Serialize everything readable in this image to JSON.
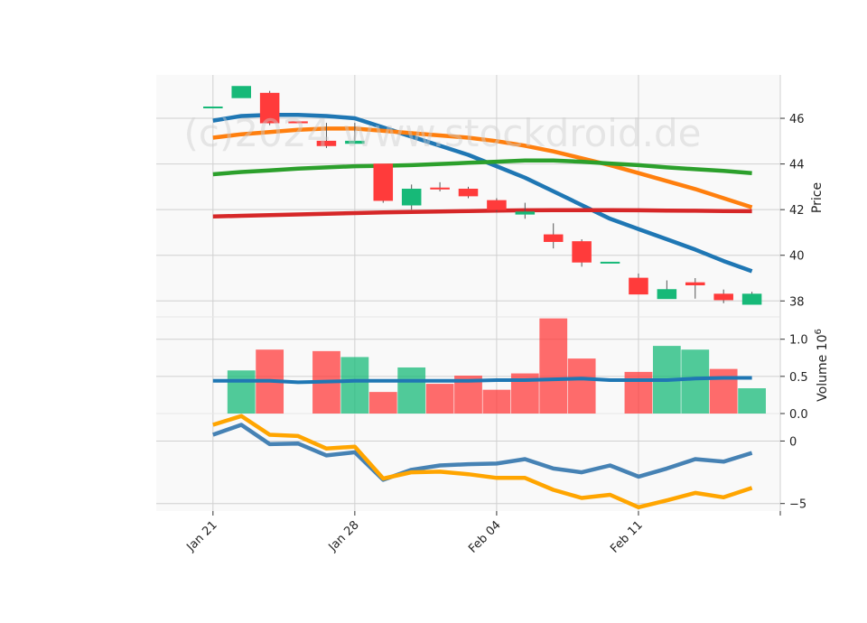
{
  "watermark": "(c)2024 www.stockdroid.de",
  "chart_data": [
    {
      "type": "candlestick",
      "panel": "price",
      "ylabel": "Price",
      "ylim": [
        37.3,
        47.9
      ],
      "yticks": [
        38,
        40,
        42,
        44,
        46
      ],
      "grid": true,
      "x_ticks": [
        {
          "label": "Jan 21",
          "x": 0
        },
        {
          "label": "Jan 28",
          "x": 5
        },
        {
          "label": "Feb 04",
          "x": 10
        },
        {
          "label": "Feb 11",
          "x": 15
        }
      ],
      "xlim": [
        -2,
        20
      ],
      "candles": [
        {
          "x": 0,
          "open": 46.5,
          "high": 46.5,
          "low": 46.5,
          "close": 46.5
        },
        {
          "x": 1,
          "open": 46.9,
          "high": 47.4,
          "low": 46.9,
          "close": 47.4
        },
        {
          "x": 2,
          "open": 47.1,
          "high": 47.2,
          "low": 45.7,
          "close": 45.8
        },
        {
          "x": 3,
          "open": 45.85,
          "high": 45.85,
          "low": 45.8,
          "close": 45.8
        },
        {
          "x": 4,
          "open": 45.0,
          "high": 45.8,
          "low": 44.7,
          "close": 44.8
        },
        {
          "x": 5,
          "open": 44.9,
          "high": 45.8,
          "low": 44.9,
          "close": 45.0
        },
        {
          "x": 6,
          "open": 44.0,
          "high": 44.0,
          "low": 42.3,
          "close": 42.4
        },
        {
          "x": 7,
          "open": 42.2,
          "high": 43.1,
          "low": 42.0,
          "close": 42.9
        },
        {
          "x": 8,
          "open": 42.95,
          "high": 43.2,
          "low": 42.8,
          "close": 42.9
        },
        {
          "x": 9,
          "open": 42.9,
          "high": 43.0,
          "low": 42.5,
          "close": 42.6
        },
        {
          "x": 10,
          "open": 42.4,
          "high": 42.5,
          "low": 41.9,
          "close": 42.0
        },
        {
          "x": 11,
          "open": 41.8,
          "high": 42.3,
          "low": 41.6,
          "close": 41.9
        },
        {
          "x": 12,
          "open": 40.9,
          "high": 41.4,
          "low": 40.3,
          "close": 40.6
        },
        {
          "x": 13,
          "open": 40.6,
          "high": 40.7,
          "low": 39.5,
          "close": 39.7
        },
        {
          "x": 14,
          "open": 39.7,
          "high": 39.7,
          "low": 39.7,
          "close": 39.7
        },
        {
          "x": 15,
          "open": 39.0,
          "high": 39.2,
          "low": 38.3,
          "close": 38.3
        },
        {
          "x": 16,
          "open": 38.1,
          "high": 38.9,
          "low": 38.1,
          "close": 38.5
        },
        {
          "x": 17,
          "open": 38.8,
          "high": 39.0,
          "low": 38.1,
          "close": 38.7
        },
        {
          "x": 18,
          "open": 38.3,
          "high": 38.5,
          "low": 37.9,
          "close": 38.05
        },
        {
          "x": 19,
          "open": 37.85,
          "high": 38.4,
          "low": 37.85,
          "close": 38.3
        }
      ],
      "overlays": [
        {
          "color": "#1f77b4",
          "points": [
            [
              0,
              45.9
            ],
            [
              1,
              46.1
            ],
            [
              2,
              46.15
            ],
            [
              3,
              46.15
            ],
            [
              4,
              46.1
            ],
            [
              5,
              46.0
            ],
            [
              6,
              45.6
            ],
            [
              7,
              45.2
            ],
            [
              8,
              44.8
            ],
            [
              9,
              44.4
            ],
            [
              10,
              43.9
            ],
            [
              11,
              43.4
            ],
            [
              12,
              42.8
            ],
            [
              13,
              42.2
            ],
            [
              14,
              41.6
            ],
            [
              15,
              41.15
            ],
            [
              16,
              40.7
            ],
            [
              17,
              40.25
            ],
            [
              18,
              39.75
            ],
            [
              19,
              39.3
            ]
          ]
        },
        {
          "color": "#ff7f0e",
          "points": [
            [
              0,
              45.15
            ],
            [
              1,
              45.3
            ],
            [
              2,
              45.4
            ],
            [
              3,
              45.5
            ],
            [
              4,
              45.55
            ],
            [
              5,
              45.55
            ],
            [
              6,
              45.45
            ],
            [
              7,
              45.35
            ],
            [
              8,
              45.25
            ],
            [
              9,
              45.15
            ],
            [
              10,
              45.0
            ],
            [
              11,
              44.8
            ],
            [
              12,
              44.55
            ],
            [
              13,
              44.25
            ],
            [
              14,
              43.95
            ],
            [
              15,
              43.6
            ],
            [
              16,
              43.25
            ],
            [
              17,
              42.9
            ],
            [
              18,
              42.5
            ],
            [
              19,
              42.1
            ]
          ]
        },
        {
          "color": "#2ca02c",
          "points": [
            [
              0,
              43.55
            ],
            [
              1,
              43.65
            ],
            [
              2,
              43.72
            ],
            [
              3,
              43.8
            ],
            [
              4,
              43.85
            ],
            [
              5,
              43.9
            ],
            [
              6,
              43.92
            ],
            [
              7,
              43.95
            ],
            [
              8,
              44.0
            ],
            [
              9,
              44.05
            ],
            [
              10,
              44.1
            ],
            [
              11,
              44.15
            ],
            [
              12,
              44.15
            ],
            [
              13,
              44.1
            ],
            [
              14,
              44.02
            ],
            [
              15,
              43.95
            ],
            [
              16,
              43.85
            ],
            [
              17,
              43.77
            ],
            [
              18,
              43.7
            ],
            [
              19,
              43.6
            ]
          ]
        },
        {
          "color": "#d62728",
          "points": [
            [
              0,
              41.7
            ],
            [
              1,
              41.73
            ],
            [
              2,
              41.76
            ],
            [
              3,
              41.79
            ],
            [
              4,
              41.82
            ],
            [
              5,
              41.85
            ],
            [
              6,
              41.88
            ],
            [
              7,
              41.9
            ],
            [
              8,
              41.92
            ],
            [
              9,
              41.94
            ],
            [
              10,
              41.96
            ],
            [
              11,
              41.97
            ],
            [
              12,
              41.98
            ],
            [
              13,
              41.98
            ],
            [
              14,
              41.98
            ],
            [
              15,
              41.97
            ],
            [
              16,
              41.96
            ],
            [
              17,
              41.95
            ],
            [
              18,
              41.94
            ],
            [
              19,
              41.93
            ]
          ]
        }
      ]
    },
    {
      "type": "bar",
      "panel": "volume",
      "ylabel": "Volume",
      "ylabel_exponent": "6",
      "ylim": [
        0,
        1.3
      ],
      "yticks": [
        "0.0",
        "0.5",
        "1.0"
      ],
      "bars": [
        {
          "x": 1,
          "value": 0.58,
          "direction": "up"
        },
        {
          "x": 2,
          "value": 0.86,
          "direction": "down"
        },
        {
          "x": 4,
          "value": 0.84,
          "direction": "down"
        },
        {
          "x": 5,
          "value": 0.76,
          "direction": "up"
        },
        {
          "x": 6,
          "value": 0.29,
          "direction": "down"
        },
        {
          "x": 7,
          "value": 0.62,
          "direction": "up"
        },
        {
          "x": 8,
          "value": 0.4,
          "direction": "down"
        },
        {
          "x": 9,
          "value": 0.51,
          "direction": "down"
        },
        {
          "x": 10,
          "value": 0.32,
          "direction": "down"
        },
        {
          "x": 11,
          "value": 0.54,
          "direction": "down"
        },
        {
          "x": 12,
          "value": 1.28,
          "direction": "down"
        },
        {
          "x": 13,
          "value": 0.74,
          "direction": "down"
        },
        {
          "x": 15,
          "value": 0.56,
          "direction": "down"
        },
        {
          "x": 16,
          "value": 0.91,
          "direction": "up"
        },
        {
          "x": 17,
          "value": 0.86,
          "direction": "up"
        },
        {
          "x": 18,
          "value": 0.6,
          "direction": "down"
        },
        {
          "x": 19,
          "value": 0.34,
          "direction": "up"
        }
      ],
      "overlay": {
        "color": "#1f77b4",
        "points": [
          [
            0,
            0.44
          ],
          [
            1,
            0.44
          ],
          [
            2,
            0.44
          ],
          [
            3,
            0.42
          ],
          [
            4,
            0.43
          ],
          [
            5,
            0.44
          ],
          [
            6,
            0.44
          ],
          [
            7,
            0.44
          ],
          [
            8,
            0.44
          ],
          [
            9,
            0.44
          ],
          [
            10,
            0.45
          ],
          [
            11,
            0.45
          ],
          [
            12,
            0.46
          ],
          [
            13,
            0.47
          ],
          [
            14,
            0.45
          ],
          [
            15,
            0.45
          ],
          [
            16,
            0.45
          ],
          [
            17,
            0.47
          ],
          [
            18,
            0.48
          ],
          [
            19,
            0.48
          ]
        ]
      }
    },
    {
      "type": "line",
      "panel": "indicator",
      "ylim": [
        -5.6,
        2.2
      ],
      "yticks": [
        "0",
        "−5"
      ],
      "tick_values": [
        0,
        -5
      ],
      "series": [
        {
          "color": "#4682b4",
          "values": [
            0.5,
            1.3,
            -0.25,
            -0.2,
            -1.15,
            -0.9,
            -3.1,
            -2.3,
            -1.95,
            -1.85,
            -1.8,
            -1.45,
            -2.2,
            -2.5,
            -1.95,
            -2.85,
            -2.2,
            -1.45,
            -1.65,
            -0.95
          ]
        },
        {
          "color": "#ffa500",
          "values": [
            1.3,
            2.0,
            0.5,
            0.4,
            -0.6,
            -0.45,
            -3.0,
            -2.5,
            -2.45,
            -2.65,
            -2.95,
            -2.95,
            -3.9,
            -4.55,
            -4.3,
            -5.3,
            -4.75,
            -4.15,
            -4.5,
            -3.75
          ]
        }
      ]
    }
  ],
  "colors": {
    "up": "#17b978",
    "down": "#ff3b3b",
    "axes_bg": "#f9f9f9",
    "grid": "#d0d0d0"
  }
}
